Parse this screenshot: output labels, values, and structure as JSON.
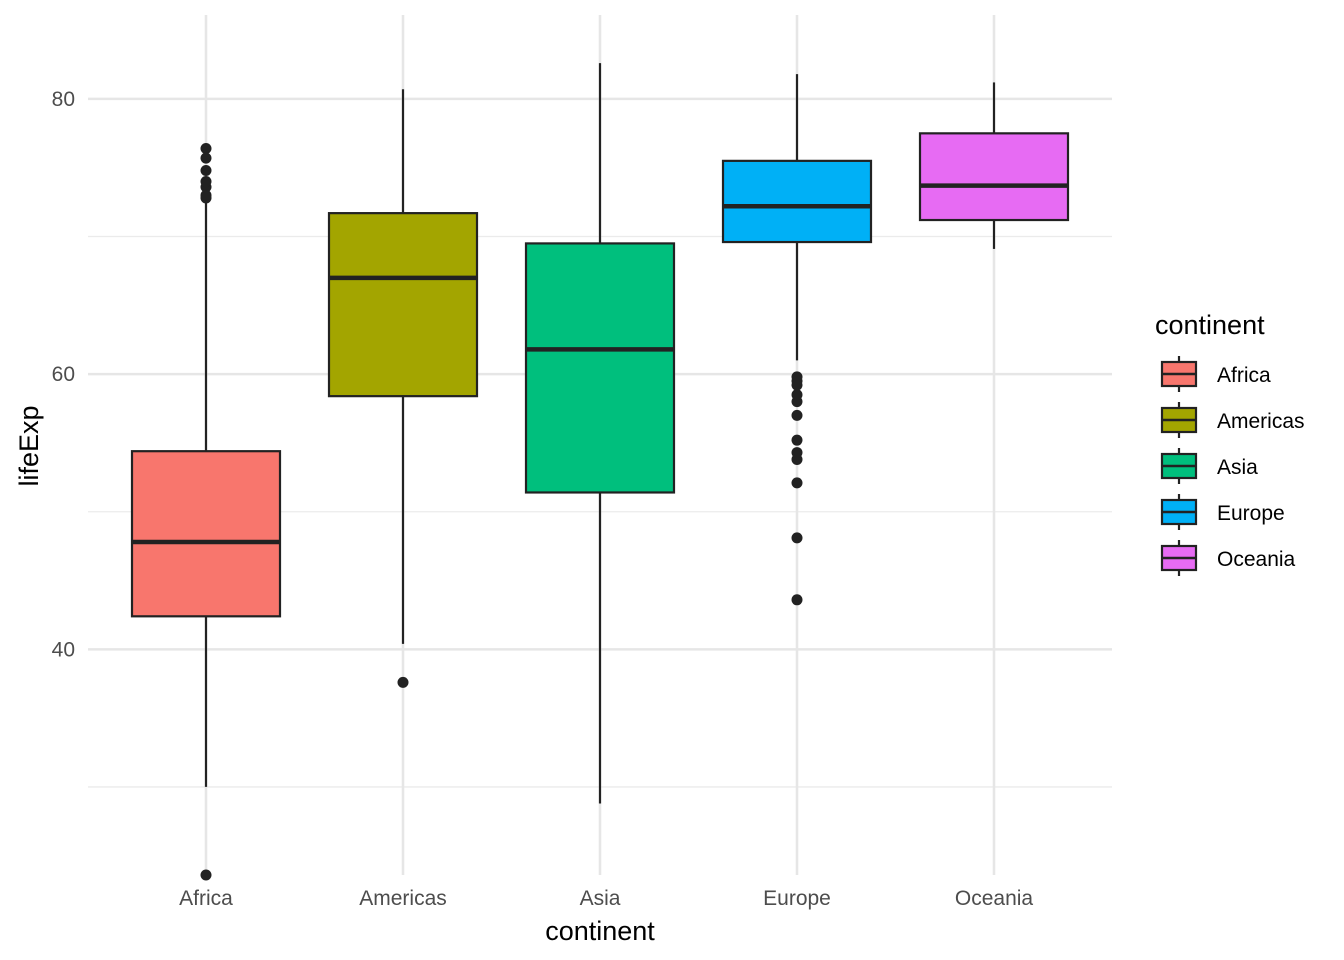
{
  "chart_data": {
    "type": "boxplot",
    "xlabel": "continent",
    "ylabel": "lifeExp",
    "ylim": [
      23.6,
      86.1
    ],
    "y_ticks": [
      40,
      60,
      80
    ],
    "y_tick_labels": [
      "40",
      "60",
      "80"
    ],
    "grid": true,
    "legend": {
      "title": "continent",
      "position": "right"
    },
    "categories": [
      "Africa",
      "Americas",
      "Asia",
      "Europe",
      "Oceania"
    ],
    "boxes": [
      {
        "category": "Africa",
        "color": "#F8766D",
        "lower_whisker": 30.0,
        "q1": 42.4,
        "median": 47.8,
        "q3": 54.4,
        "upper_whisker": 72.7,
        "outliers": [
          23.6,
          72.8,
          73.0,
          73.6,
          74.0,
          74.8,
          75.7,
          76.4
        ]
      },
      {
        "category": "Americas",
        "color": "#A3A500",
        "lower_whisker": 40.4,
        "q1": 58.4,
        "median": 67.0,
        "q3": 71.7,
        "upper_whisker": 80.7,
        "outliers": [
          37.6
        ]
      },
      {
        "category": "Asia",
        "color": "#00BF7D",
        "lower_whisker": 28.8,
        "q1": 51.4,
        "median": 61.8,
        "q3": 69.5,
        "upper_whisker": 82.6,
        "outliers": []
      },
      {
        "category": "Europe",
        "color": "#00B0F6",
        "lower_whisker": 61.0,
        "q1": 69.6,
        "median": 72.2,
        "q3": 75.5,
        "upper_whisker": 81.8,
        "outliers": [
          43.6,
          48.1,
          52.1,
          53.8,
          54.3,
          55.2,
          57.0,
          58.0,
          58.5,
          59.2,
          59.5,
          59.8
        ]
      },
      {
        "category": "Oceania",
        "color": "#E76BF3",
        "lower_whisker": 69.1,
        "q1": 71.2,
        "median": 73.7,
        "q3": 77.5,
        "upper_whisker": 81.2,
        "outliers": []
      }
    ]
  }
}
